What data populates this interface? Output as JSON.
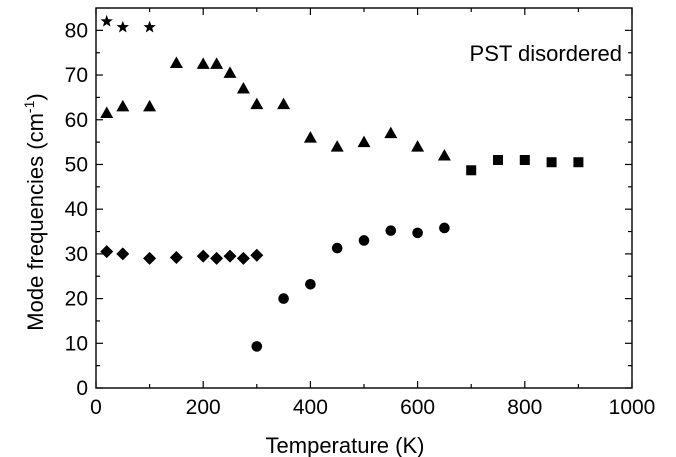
{
  "chart_data": {
    "type": "scatter",
    "title": "",
    "annotation": "PST disordered",
    "xlabel": "Temperature  (K)",
    "ylabel_main": "Mode frequencies  (cm",
    "ylabel_sup": "-1",
    "ylabel_close": ")",
    "xlim": [
      0,
      1000
    ],
    "ylim": [
      0,
      85
    ],
    "xticks": [
      0,
      200,
      400,
      600,
      800,
      1000
    ],
    "yticks": [
      0,
      10,
      20,
      30,
      40,
      50,
      60,
      70,
      80
    ],
    "grid": false,
    "series": [
      {
        "marker": "star",
        "x": [
          20,
          50,
          100
        ],
        "y": [
          82,
          80.7,
          80.7
        ]
      },
      {
        "marker": "triangle",
        "x": [
          20,
          50,
          100,
          150,
          200,
          225,
          250,
          275,
          300,
          350,
          400,
          450,
          500,
          550,
          600,
          650
        ],
        "y": [
          61.5,
          63,
          63,
          72.7,
          72.5,
          72.5,
          70.5,
          67,
          63.5,
          63.5,
          56,
          54,
          55,
          57,
          54,
          52
        ]
      },
      {
        "marker": "square",
        "x": [
          700,
          750,
          800,
          850,
          900
        ],
        "y": [
          48.7,
          51,
          51,
          50.5,
          50.5
        ]
      },
      {
        "marker": "diamond",
        "x": [
          20,
          50,
          100,
          150,
          200,
          225,
          250,
          275,
          300
        ],
        "y": [
          30.5,
          30,
          29,
          29.2,
          29.5,
          29,
          29.5,
          29,
          29.7
        ]
      },
      {
        "marker": "circle",
        "x": [
          300,
          350,
          400,
          450,
          500,
          550,
          600,
          650
        ],
        "y": [
          9.3,
          20,
          23.2,
          31.3,
          33,
          35.2,
          34.7,
          35.8
        ]
      }
    ]
  }
}
